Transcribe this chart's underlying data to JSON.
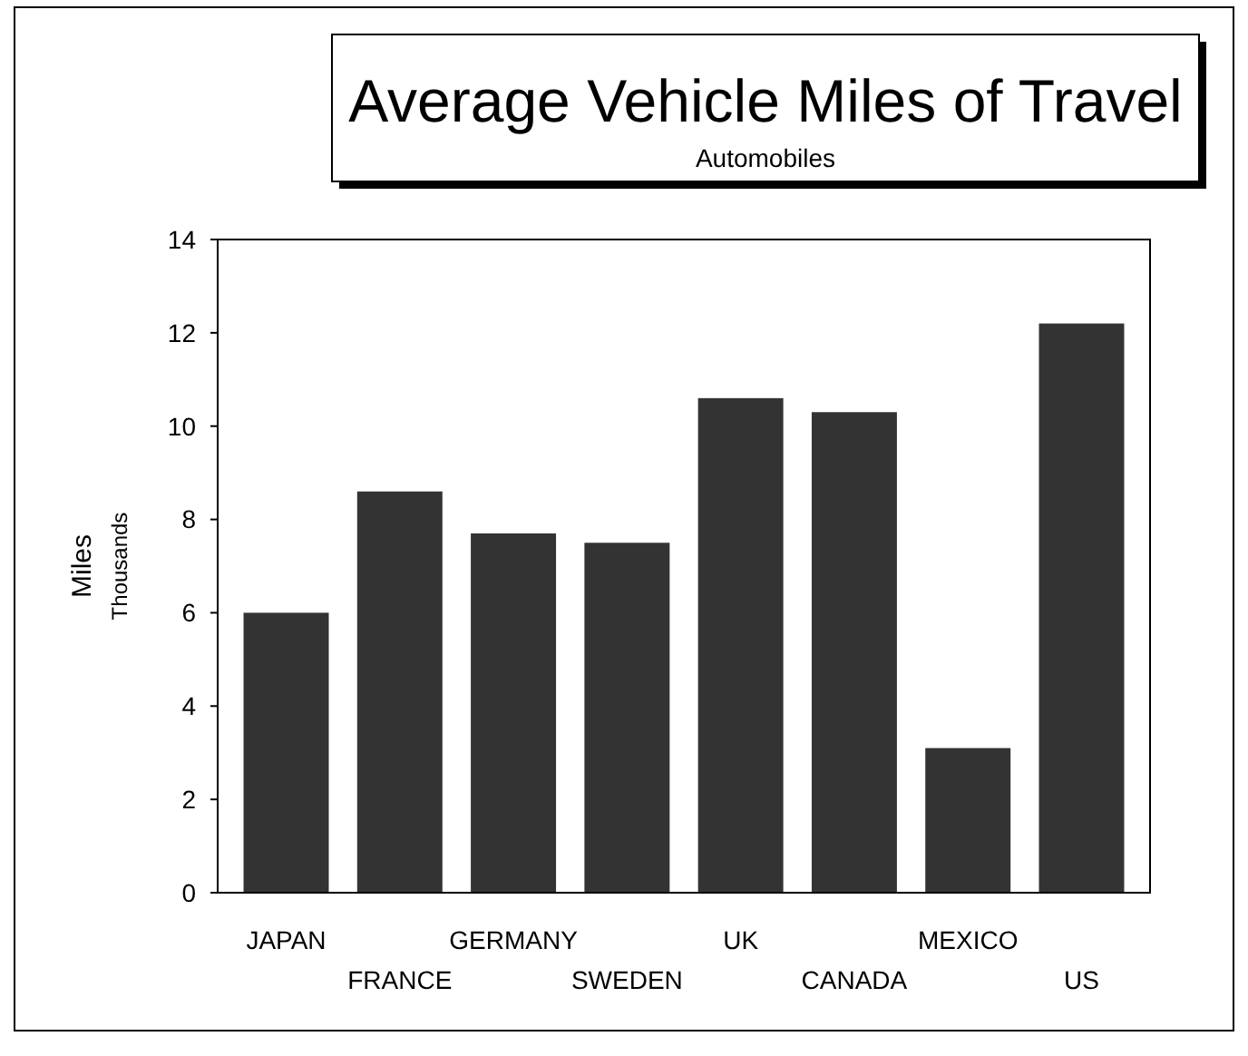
{
  "chart_data": {
    "type": "bar",
    "title": "Average Vehicle Miles of Travel",
    "subtitle": "Automobiles",
    "ylabel": "Miles\nThousands",
    "categories": [
      "JAPAN",
      "FRANCE",
      "GERMANY",
      "SWEDEN",
      "UK",
      "CANADA",
      "MEXICO",
      "US"
    ],
    "values": [
      6.0,
      8.6,
      7.7,
      7.5,
      10.6,
      10.3,
      3.1,
      12.2
    ],
    "color": "#333333",
    "ylim": [
      0,
      14
    ],
    "yticks": [
      0,
      2,
      4,
      6,
      8,
      10,
      12,
      14
    ]
  }
}
